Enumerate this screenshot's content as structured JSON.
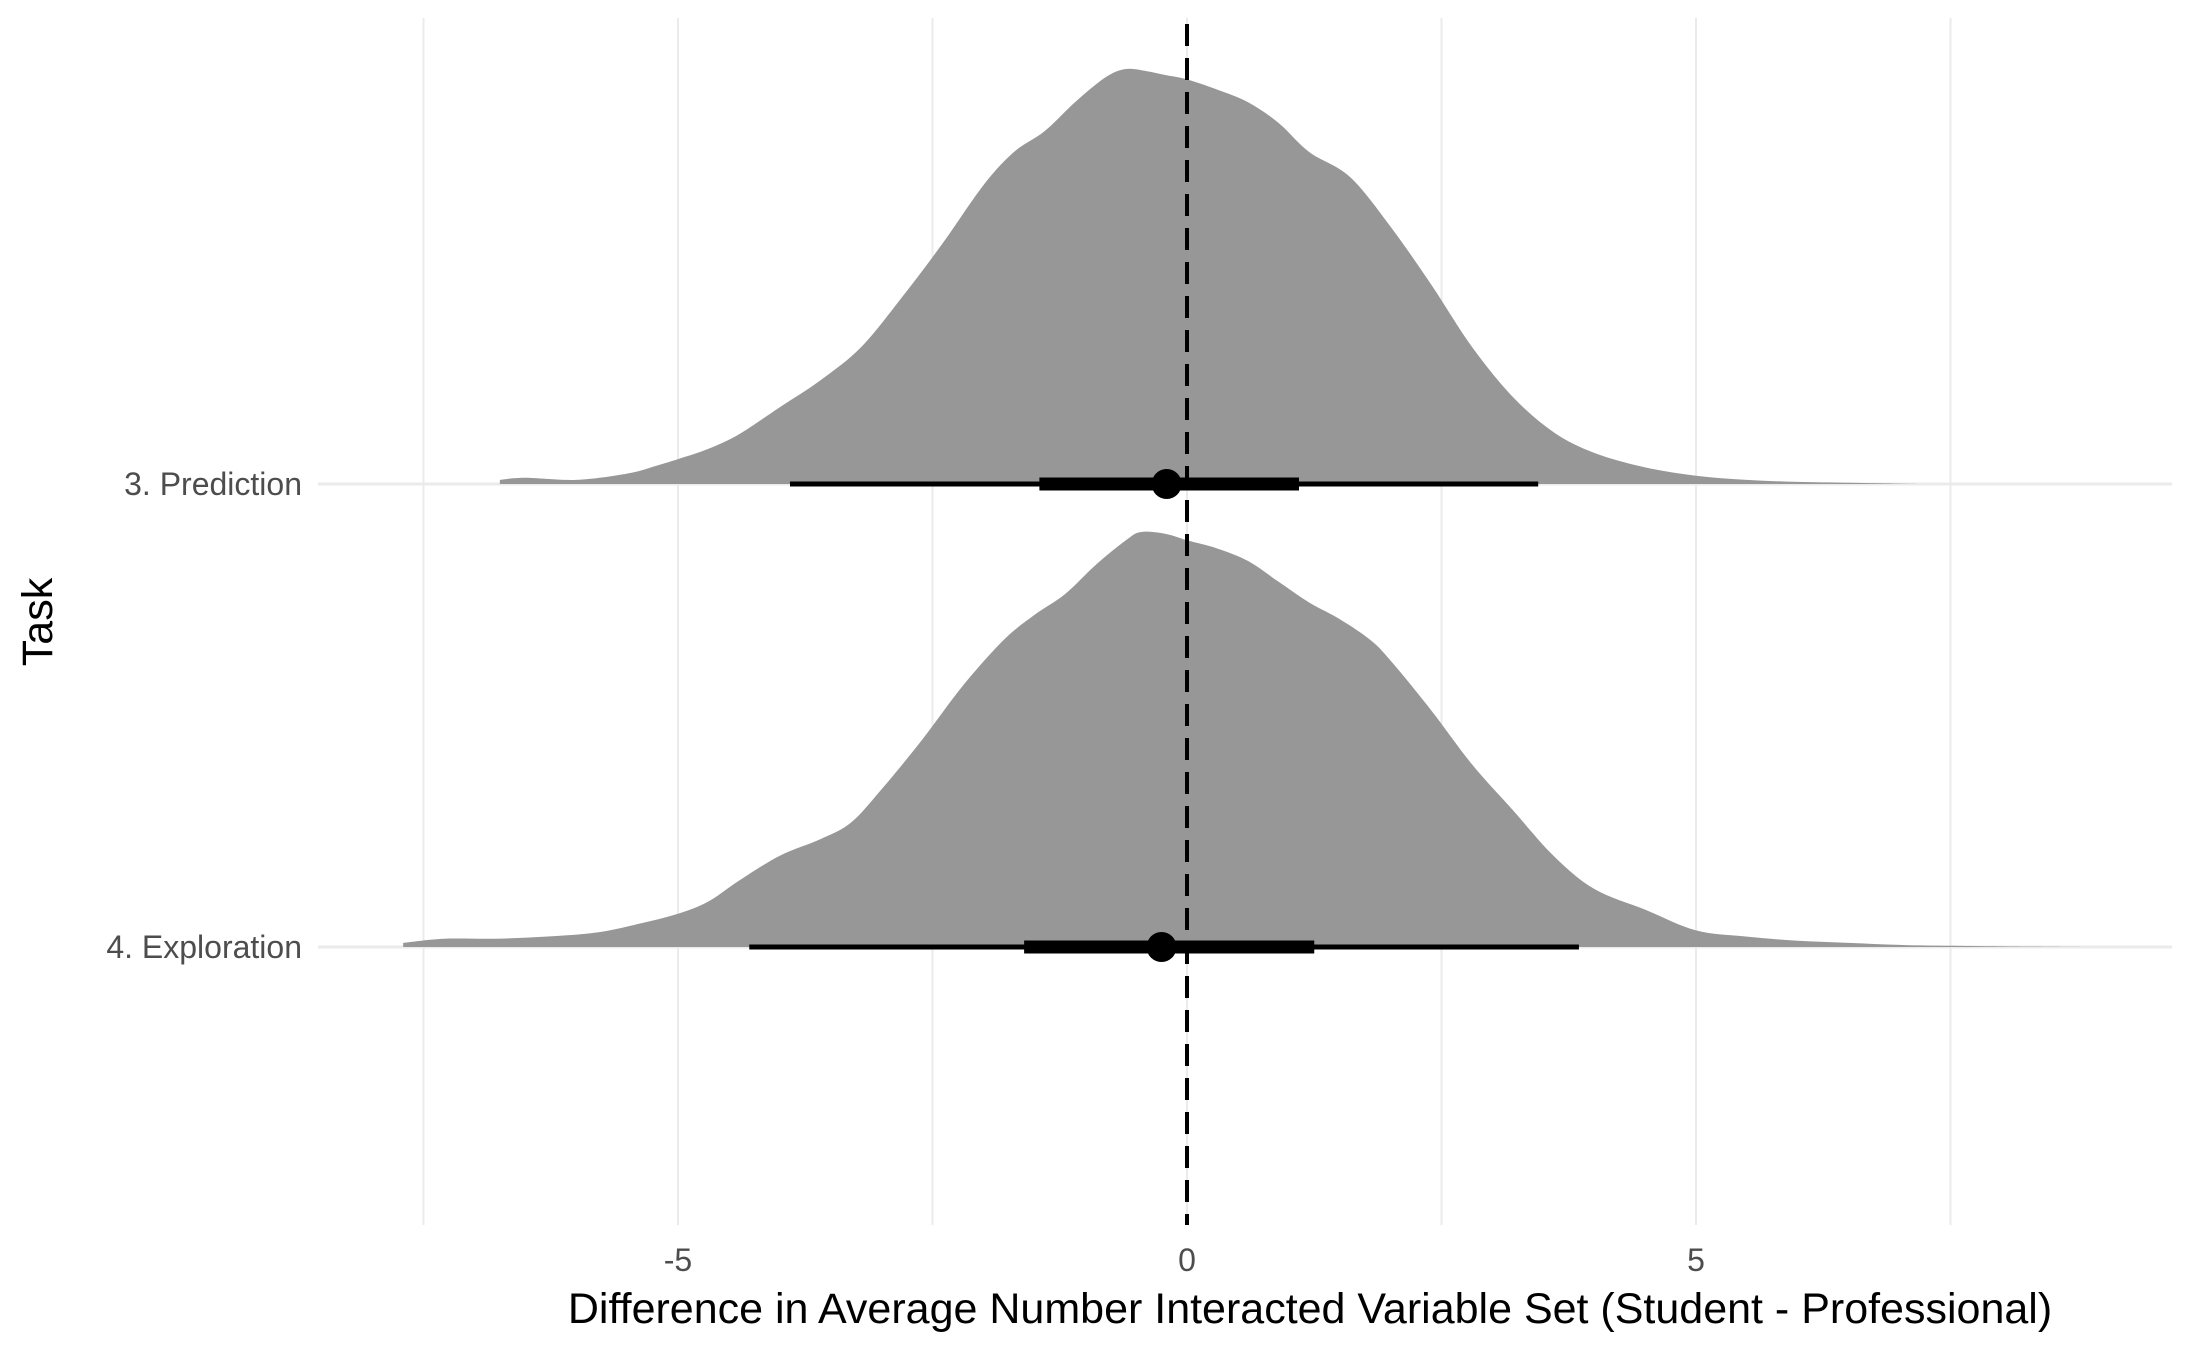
{
  "chart_data": {
    "type": "halfeye",
    "xlabel": "Difference in Average Number Interacted Variable Set (Student - Professional)",
    "ylabel": "Task",
    "xlim": [
      -7.5,
      9.4
    ],
    "xticks": [
      -5,
      0,
      5
    ],
    "x_gridlines": [
      -7.5,
      -5,
      -2.5,
      0,
      2.5,
      5,
      7.5
    ],
    "reference_line": {
      "x": 0,
      "style": "dashed"
    },
    "grid": true,
    "legend": "none",
    "colors": {
      "density": "#979797",
      "interval": "#000000",
      "grid": "#ebebeb"
    },
    "series": [
      {
        "name": "3. Prediction",
        "point": -0.2,
        "interval_66": [
          -1.45,
          1.1
        ],
        "interval_95": [
          -3.9,
          3.45
        ],
        "density": {
          "x": [
            -6.75,
            -6.5,
            -6.0,
            -5.5,
            -5.2,
            -5.0,
            -4.7,
            -4.4,
            -4.0,
            -3.6,
            -3.2,
            -2.8,
            -2.4,
            -2.0,
            -1.7,
            -1.4,
            -1.1,
            -0.8,
            -0.6,
            -0.4,
            -0.2,
            0.0,
            0.3,
            0.6,
            0.9,
            1.2,
            1.6,
            2.0,
            2.4,
            2.8,
            3.2,
            3.6,
            4.0,
            4.5,
            5.0,
            5.5,
            6.0,
            6.5,
            7.2
          ],
          "y": [
            0.01,
            0.015,
            0.01,
            0.025,
            0.045,
            0.06,
            0.085,
            0.12,
            0.185,
            0.25,
            0.33,
            0.45,
            0.58,
            0.72,
            0.8,
            0.85,
            0.92,
            0.98,
            1.0,
            0.995,
            0.985,
            0.975,
            0.95,
            0.92,
            0.87,
            0.8,
            0.74,
            0.62,
            0.48,
            0.33,
            0.21,
            0.125,
            0.075,
            0.04,
            0.02,
            0.01,
            0.005,
            0.003,
            0.0
          ]
        }
      },
      {
        "name": "4. Exploration",
        "point": -0.25,
        "interval_66": [
          -1.6,
          1.25
        ],
        "interval_95": [
          -4.3,
          3.85
        ],
        "density": {
          "x": [
            -7.7,
            -7.3,
            -6.8,
            -6.3,
            -5.8,
            -5.4,
            -5.0,
            -4.7,
            -4.4,
            -4.0,
            -3.6,
            -3.3,
            -3.0,
            -2.6,
            -2.2,
            -1.8,
            -1.5,
            -1.2,
            -0.9,
            -0.6,
            -0.45,
            -0.2,
            0.0,
            0.3,
            0.6,
            0.9,
            1.2,
            1.5,
            1.8,
            2.0,
            2.4,
            2.8,
            3.2,
            3.6,
            4.0,
            4.5,
            5.0,
            5.5,
            6.0,
            6.5,
            7.0,
            7.5,
            8.2,
            8.8
          ],
          "y": [
            0.01,
            0.02,
            0.02,
            0.025,
            0.035,
            0.055,
            0.08,
            0.11,
            0.16,
            0.22,
            0.26,
            0.3,
            0.38,
            0.5,
            0.63,
            0.74,
            0.8,
            0.85,
            0.92,
            0.98,
            1.0,
            0.995,
            0.98,
            0.96,
            0.93,
            0.88,
            0.83,
            0.79,
            0.74,
            0.69,
            0.57,
            0.44,
            0.33,
            0.22,
            0.14,
            0.09,
            0.04,
            0.025,
            0.015,
            0.01,
            0.005,
            0.003,
            0.001,
            0.0
          ]
        }
      }
    ]
  }
}
